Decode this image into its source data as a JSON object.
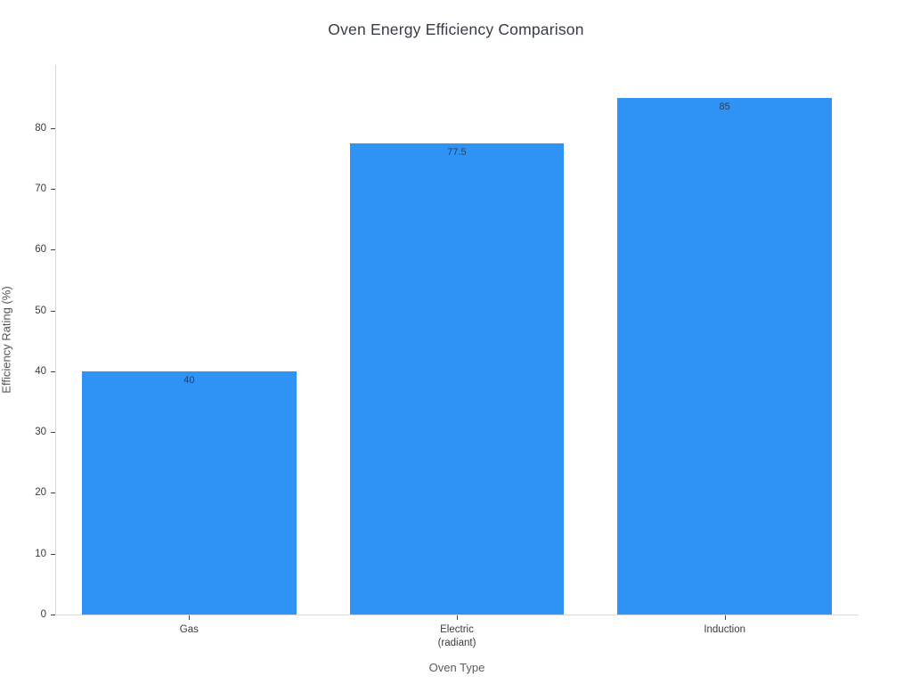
{
  "chart": {
    "title": "Oven Energy Efficiency Comparison",
    "colors": {
      "bar_fill": "#2e93f5",
      "axis_line": "#d9d9d9",
      "tick_mark": "#444444",
      "tick_label_text": "#3b3b3b",
      "value_label_text": "#2a3f5f",
      "axis_title_text": "#5c5c5c",
      "title_text": "#363c46",
      "background": "#ffffff"
    }
  },
  "chart_data": {
    "type": "bar",
    "title": "Oven Energy Efficiency Comparison",
    "xlabel": "Oven Type",
    "ylabel": "Efficiency Rating (%)",
    "categories": [
      "Gas",
      "Electric\n(radiant)",
      "Induction"
    ],
    "values": [
      40,
      77.5,
      85
    ],
    "bar_labels": [
      "40",
      "77.5",
      "85"
    ],
    "ylim": [
      0,
      90.4
    ],
    "yticks": [
      0,
      10,
      20,
      30,
      40,
      50,
      60,
      70,
      80
    ],
    "grid": false,
    "legend": false,
    "bar_band_fraction": 0.8
  }
}
